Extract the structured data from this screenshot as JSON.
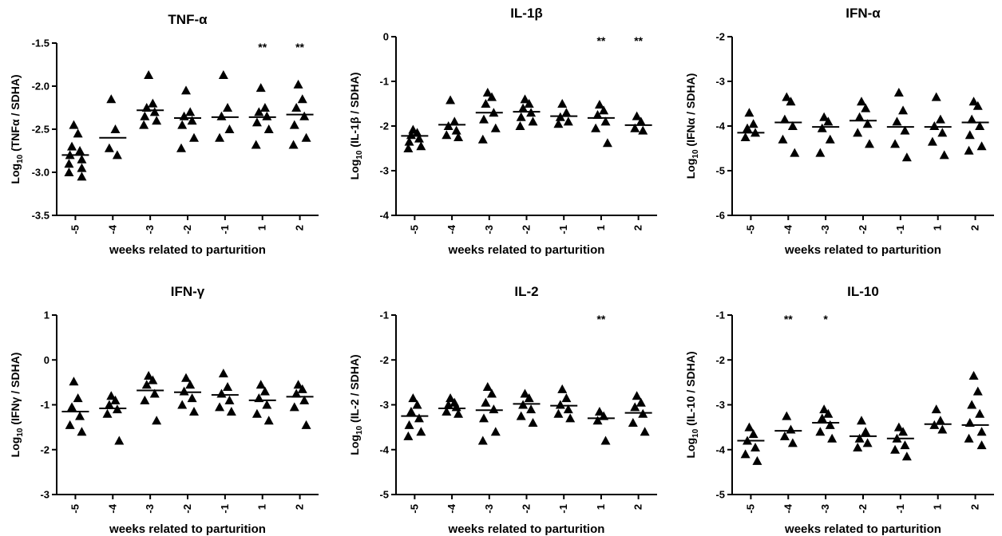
{
  "chart_data": [
    {
      "type": "scatter",
      "title": "TNF-α",
      "ylabel": "Log10 (TNFα / SDHA)",
      "ylabel_main": "Log",
      "ylabel_sub": "10",
      "ylabel_rest": " (TNFα / SDHA)",
      "xlabel": "weeks related to parturition",
      "categories": [
        "-5",
        "-4",
        "-3",
        "-2",
        "-1",
        "1",
        "2"
      ],
      "ylim": [
        -3.5,
        -1.5
      ],
      "yticks": [
        -3.5,
        -3.0,
        -2.5,
        -2.0,
        -1.5
      ],
      "yticklabels": [
        "-3.5",
        "-3.0",
        "-2.5",
        "-2.0",
        "-1.5"
      ],
      "medians": [
        -2.8,
        -2.6,
        -2.28,
        -2.37,
        -2.36,
        -2.36,
        -2.33
      ],
      "points": [
        [
          -2.45,
          -2.55,
          -2.7,
          -2.75,
          -2.8,
          -2.85,
          -2.9,
          -2.95,
          -3.0,
          -3.05
        ],
        [
          -2.15,
          -2.5,
          -2.72,
          -2.8
        ],
        [
          -1.87,
          -2.2,
          -2.25,
          -2.3,
          -2.35,
          -2.4,
          -2.45
        ],
        [
          -2.05,
          -2.3,
          -2.35,
          -2.4,
          -2.45,
          -2.6,
          -2.72
        ],
        [
          -1.87,
          -2.25,
          -2.35,
          -2.5,
          -2.6
        ],
        [
          -2.02,
          -2.25,
          -2.3,
          -2.35,
          -2.42,
          -2.5,
          -2.68
        ],
        [
          -1.98,
          -2.15,
          -2.25,
          -2.35,
          -2.45,
          -2.6,
          -2.68
        ]
      ],
      "annotations": [
        {
          "category": "1",
          "text": "**"
        },
        {
          "category": "2",
          "text": "**"
        }
      ]
    },
    {
      "type": "scatter",
      "title": "IL-1β",
      "ylabel": "Log10 (IL-1β / SDHA)",
      "ylabel_main": "Log",
      "ylabel_sub": "10",
      "ylabel_rest": " (IL-1β / SDHA)",
      "xlabel": "weeks related to parturition",
      "categories": [
        "-5",
        "-4",
        "-3",
        "-2",
        "-1",
        "1",
        "2"
      ],
      "ylim": [
        -4,
        0
      ],
      "yticks": [
        -4,
        -3,
        -2,
        -1,
        0
      ],
      "yticklabels": [
        "-4",
        "-3",
        "-2",
        "-1",
        "0"
      ],
      "medians": [
        -2.22,
        -1.97,
        -1.7,
        -1.68,
        -1.78,
        -1.82,
        -1.98
      ],
      "points": [
        [
          -2.08,
          -2.15,
          -2.2,
          -2.28,
          -2.35,
          -2.45,
          -2.5
        ],
        [
          -1.42,
          -1.9,
          -2.0,
          -2.1,
          -2.2,
          -2.25
        ],
        [
          -1.25,
          -1.35,
          -1.5,
          -1.7,
          -1.85,
          -2.05,
          -2.3
        ],
        [
          -1.4,
          -1.5,
          -1.6,
          -1.7,
          -1.8,
          -1.9,
          -2.0
        ],
        [
          -1.5,
          -1.7,
          -1.8,
          -1.9,
          -1.95
        ],
        [
          -1.52,
          -1.65,
          -1.75,
          -1.9,
          -2.05,
          -2.38
        ],
        [
          -1.78,
          -1.9,
          -2.05,
          -2.1
        ]
      ],
      "annotations": [
        {
          "category": "1",
          "text": "**"
        },
        {
          "category": "2",
          "text": "**"
        }
      ]
    },
    {
      "type": "scatter",
      "title": "IFN-α",
      "ylabel": "Log10 (IFNα / SDHA)",
      "ylabel_main": "Log",
      "ylabel_sub": "10",
      "ylabel_rest": " (IFNα / SDHA)",
      "xlabel": "weeks related to parturition",
      "categories": [
        "-5",
        "-4",
        "-3",
        "-2",
        "-1",
        "1",
        "2"
      ],
      "ylim": [
        -6,
        -2
      ],
      "yticks": [
        -6,
        -5,
        -4,
        -3,
        -2
      ],
      "yticklabels": [
        "-6",
        "-5",
        "-4",
        "-3",
        "-2"
      ],
      "medians": [
        -4.15,
        -3.92,
        -4.02,
        -3.88,
        -4.02,
        -4.02,
        -3.92
      ],
      "points": [
        [
          -3.7,
          -3.95,
          -4.05,
          -4.15,
          -4.25
        ],
        [
          -3.35,
          -3.45,
          -3.85,
          -4.0,
          -4.3,
          -4.6
        ],
        [
          -3.8,
          -3.9,
          -4.05,
          -4.3,
          -4.6
        ],
        [
          -3.45,
          -3.6,
          -3.8,
          -3.95,
          -4.15,
          -4.4
        ],
        [
          -3.25,
          -3.65,
          -3.9,
          -4.1,
          -4.4,
          -4.7
        ],
        [
          -3.35,
          -3.85,
          -4.0,
          -4.15,
          -4.35,
          -4.65
        ],
        [
          -3.45,
          -3.55,
          -3.85,
          -4.0,
          -4.2,
          -4.45,
          -4.55
        ]
      ],
      "annotations": []
    },
    {
      "type": "scatter",
      "title": "IFN-γ",
      "ylabel": "Log10 (IFNγ / SDHA)",
      "ylabel_main": "Log",
      "ylabel_sub": "10",
      "ylabel_rest": " (IFNγ / SDHA)",
      "xlabel": "weeks related to parturition",
      "categories": [
        "-5",
        "-4",
        "-3",
        "-2",
        "-1",
        "1",
        "2"
      ],
      "ylim": [
        -3,
        1
      ],
      "yticks": [
        -3,
        -2,
        -1,
        0,
        1
      ],
      "yticklabels": [
        "-3",
        "-2",
        "-1",
        "0",
        "1"
      ],
      "medians": [
        -1.15,
        -1.08,
        -0.68,
        -0.72,
        -0.78,
        -0.9,
        -0.82
      ],
      "points": [
        [
          -0.48,
          -0.85,
          -1.05,
          -1.25,
          -1.45,
          -1.6
        ],
        [
          -0.8,
          -0.9,
          -1.0,
          -1.1,
          -1.2,
          -1.8
        ],
        [
          -0.35,
          -0.45,
          -0.55,
          -0.75,
          -0.9,
          -1.35
        ],
        [
          -0.4,
          -0.55,
          -0.7,
          -0.85,
          -1.0,
          -1.15
        ],
        [
          -0.3,
          -0.6,
          -0.75,
          -0.9,
          -1.05,
          -1.15
        ],
        [
          -0.55,
          -0.7,
          -0.85,
          -1.0,
          -1.2,
          -1.35
        ],
        [
          -0.55,
          -0.65,
          -0.75,
          -0.9,
          -1.05,
          -1.45
        ]
      ],
      "annotations": []
    },
    {
      "type": "scatter",
      "title": "IL-2",
      "ylabel": "Log10 (IL-2 / SDHA)",
      "ylabel_main": "Log",
      "ylabel_sub": "10",
      "ylabel_rest": " (IL-2 / SDHA)",
      "xlabel": "weeks related to parturition",
      "categories": [
        "-5",
        "-4",
        "-3",
        "-2",
        "-1",
        "1",
        "2"
      ],
      "ylim": [
        -5,
        -1
      ],
      "yticks": [
        -5,
        -4,
        -3,
        -2,
        -1
      ],
      "yticklabels": [
        "-5",
        "-4",
        "-3",
        "-2",
        "-1"
      ],
      "medians": [
        -3.25,
        -3.08,
        -3.12,
        -2.98,
        -3.02,
        -3.3,
        -3.18
      ],
      "points": [
        [
          -2.85,
          -3.0,
          -3.15,
          -3.3,
          -3.45,
          -3.6,
          -3.7
        ],
        [
          -2.85,
          -2.95,
          -3.0,
          -3.05,
          -3.15,
          -3.2
        ],
        [
          -2.6,
          -2.75,
          -2.95,
          -3.1,
          -3.3,
          -3.6,
          -3.8
        ],
        [
          -2.75,
          -2.85,
          -3.0,
          -3.1,
          -3.25,
          -3.4
        ],
        [
          -2.65,
          -2.85,
          -3.0,
          -3.1,
          -3.2,
          -3.3
        ],
        [
          -3.15,
          -3.25,
          -3.35,
          -3.8
        ],
        [
          -2.8,
          -2.95,
          -3.05,
          -3.2,
          -3.4,
          -3.6
        ]
      ],
      "annotations": [
        {
          "category": "1",
          "text": "**"
        }
      ]
    },
    {
      "type": "scatter",
      "title": "IL-10",
      "ylabel": "Log10 (IL-10 / SDHA)",
      "ylabel_main": "Log",
      "ylabel_sub": "10",
      "ylabel_rest": " (IL-10 / SDHA)",
      "xlabel": "weeks related to parturition",
      "categories": [
        "-5",
        "-4",
        "-3",
        "-2",
        "-1",
        "1",
        "2"
      ],
      "ylim": [
        -5,
        -1
      ],
      "yticks": [
        -5,
        -4,
        -3,
        -2,
        -1
      ],
      "yticklabels": [
        "-5",
        "-4",
        "-3",
        "-2",
        "-1"
      ],
      "medians": [
        -3.8,
        -3.58,
        -3.4,
        -3.7,
        -3.75,
        -3.43,
        -3.45
      ],
      "points": [
        [
          -3.5,
          -3.65,
          -3.8,
          -3.95,
          -4.1,
          -4.25
        ],
        [
          -3.25,
          -3.55,
          -3.7,
          -3.85
        ],
        [
          -3.1,
          -3.2,
          -3.3,
          -3.45,
          -3.6,
          -3.75
        ],
        [
          -3.35,
          -3.6,
          -3.75,
          -3.85,
          -3.95
        ],
        [
          -3.5,
          -3.6,
          -3.75,
          -3.9,
          -4.0,
          -4.15
        ],
        [
          -3.1,
          -3.35,
          -3.45,
          -3.55
        ],
        [
          -2.35,
          -2.7,
          -3.0,
          -3.2,
          -3.4,
          -3.6,
          -3.75,
          -3.9
        ]
      ],
      "annotations": [
        {
          "category": "-4",
          "text": "**"
        },
        {
          "category": "-3",
          "text": "*"
        }
      ]
    }
  ]
}
